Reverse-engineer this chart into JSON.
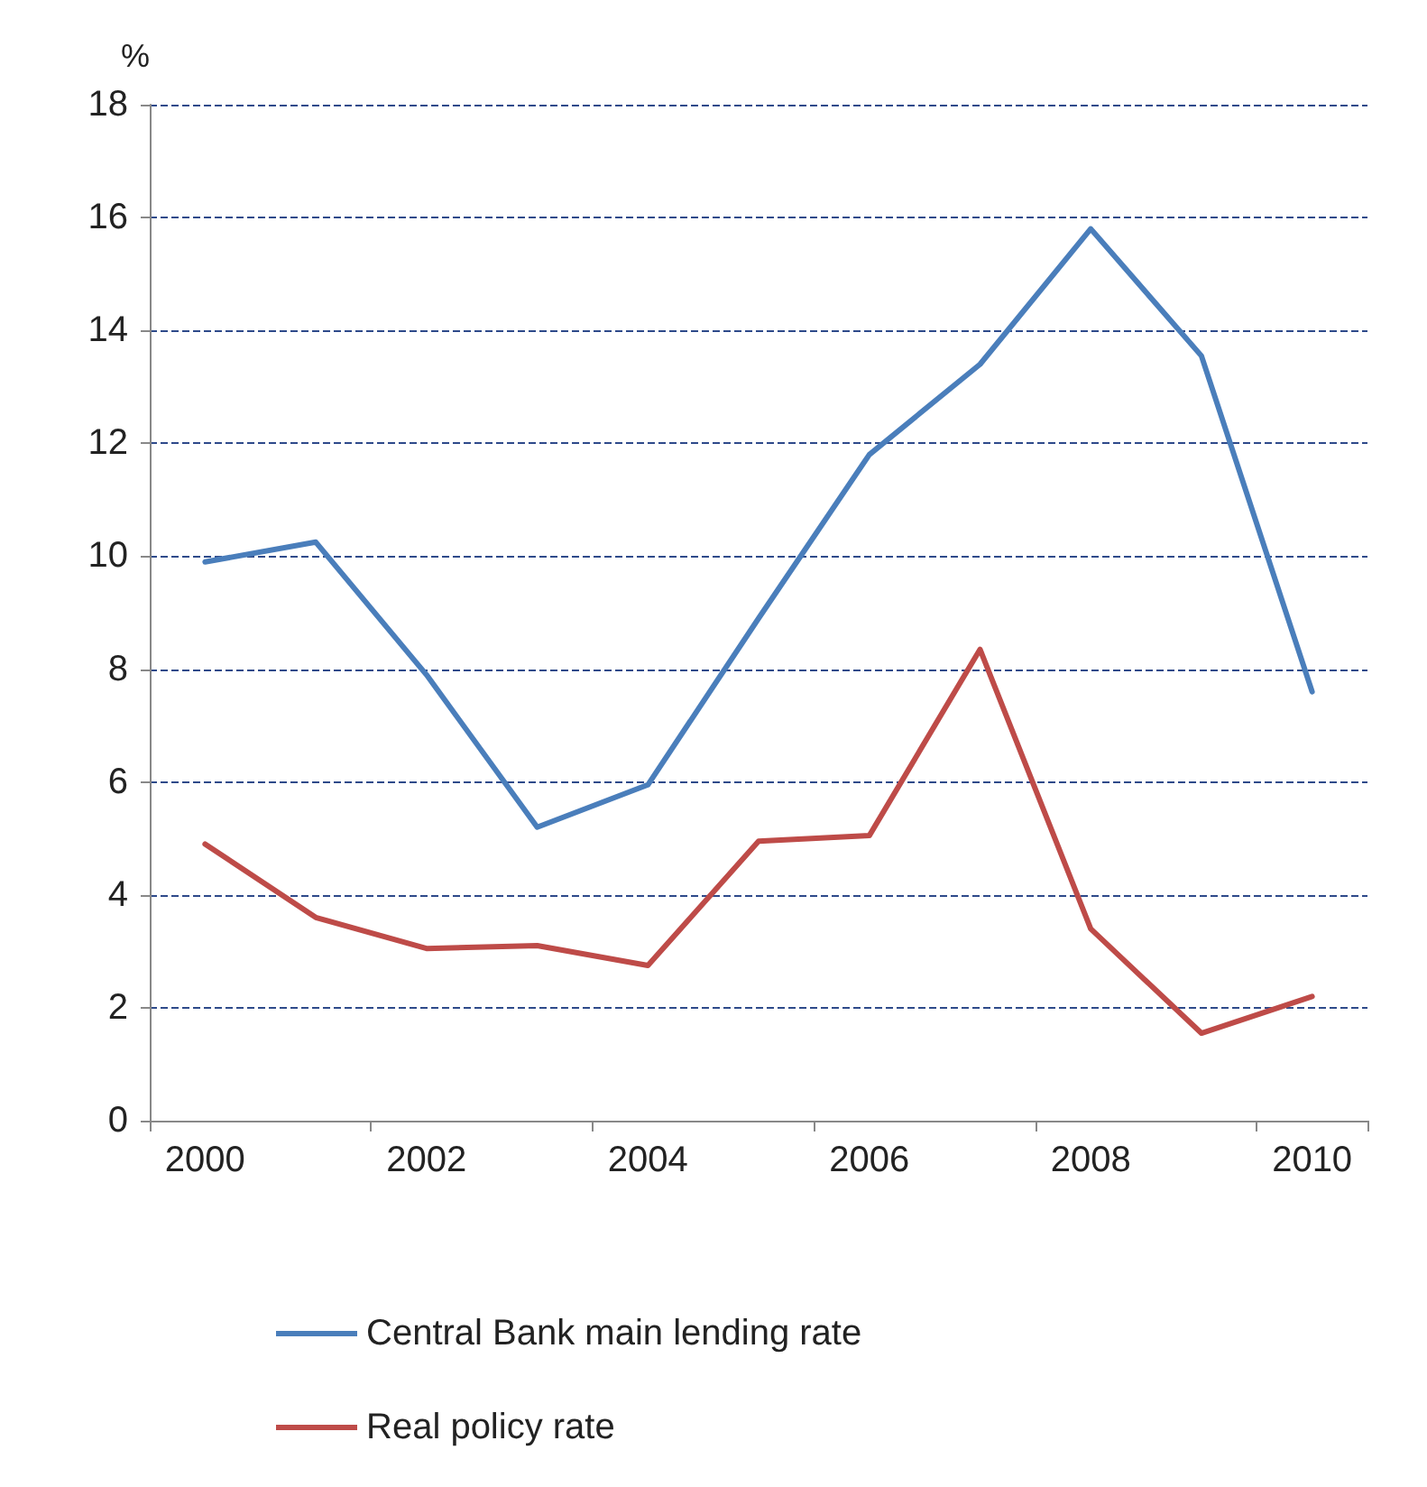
{
  "chart_data": {
    "type": "line",
    "ylabel": "%",
    "categories": [
      "2000",
      null,
      "2002",
      null,
      "2004",
      null,
      "2006",
      null,
      "2008",
      null,
      "2010"
    ],
    "series": [
      {
        "name": "Central Bank main lending rate",
        "color": "#4a7ebb",
        "values": [
          9.9,
          10.25,
          7.9,
          5.2,
          5.95,
          8.9,
          11.8,
          13.4,
          15.8,
          13.55,
          7.6
        ]
      },
      {
        "name": "Real policy rate",
        "color": "#be4b48",
        "values": [
          4.9,
          3.6,
          3.05,
          3.1,
          2.75,
          4.95,
          5.05,
          8.35,
          3.4,
          1.55,
          2.2
        ]
      }
    ],
    "ylim": [
      0,
      18
    ],
    "yticks": [
      0,
      2,
      4,
      6,
      8,
      10,
      12,
      14,
      16,
      18
    ],
    "grid": "y",
    "legend": "bottom",
    "marker": "none",
    "line_style": "solid"
  }
}
